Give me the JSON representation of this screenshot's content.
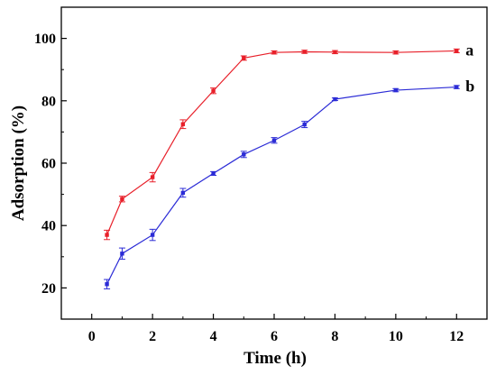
{
  "chart_data": {
    "type": "line",
    "xlabel": "Time (h)",
    "ylabel": "Adsorption (%)",
    "xlim": [
      -1,
      13
    ],
    "ylim": [
      10,
      110
    ],
    "xticks": [
      "0",
      "2",
      "4",
      "6",
      "8",
      "10",
      "12"
    ],
    "yticks": [
      "20",
      "40",
      "60",
      "80",
      "100"
    ],
    "grid": false,
    "error_bars": true,
    "series": [
      {
        "name": "a",
        "color": "#e8202a",
        "x": [
          0.5,
          1,
          2,
          3,
          4,
          5,
          6,
          7,
          8,
          10,
          12
        ],
        "y": [
          37,
          48.5,
          55.5,
          72.5,
          83.2,
          93.7,
          95.5,
          95.7,
          95.6,
          95.5,
          96
        ],
        "err": [
          1.5,
          0.9,
          1.5,
          1.4,
          0.9,
          0.7,
          0.5,
          0.5,
          0.5,
          0.5,
          0.6
        ]
      },
      {
        "name": "b",
        "color": "#2b2bd6",
        "x": [
          0.5,
          1,
          2,
          3,
          4,
          5,
          6,
          7,
          8,
          10,
          12
        ],
        "y": [
          21.2,
          31,
          37,
          50.5,
          56.7,
          62.8,
          67.3,
          72.4,
          80.5,
          83.4,
          84.4
        ],
        "err": [
          1.5,
          1.8,
          1.8,
          1.4,
          0.6,
          1.0,
          0.9,
          1.0,
          0.4,
          0.5,
          0.5
        ]
      }
    ]
  }
}
